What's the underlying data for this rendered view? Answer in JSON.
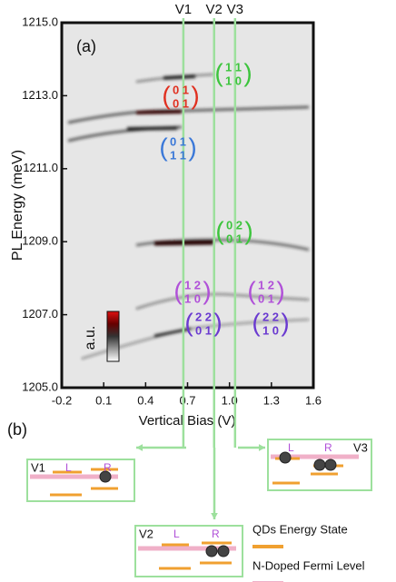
{
  "panel_a": {
    "label": "(a)",
    "xlabel": "Vertical Bias (V)",
    "ylabel": "PL Energy (meV)",
    "xlim": [
      -0.2,
      1.6
    ],
    "ylim": [
      1205,
      1215
    ],
    "xticks": [
      -0.2,
      0.1,
      0.4,
      0.7,
      {
        "value": 1.0,
        "label": "1.0"
      },
      1.3,
      1.6
    ],
    "yticks": [
      {
        "value": 1205,
        "label": "1205.0"
      },
      {
        "value": 1207,
        "label": "1207.0"
      },
      {
        "value": 1209,
        "label": "1209.0"
      },
      {
        "value": 1211,
        "label": "1211.0"
      },
      {
        "value": 1213,
        "label": "1213.0"
      },
      {
        "value": 1215,
        "label": "1215.0"
      }
    ],
    "markers": [
      {
        "name": "V1",
        "x": 0.67
      },
      {
        "name": "V2",
        "x": 0.89
      },
      {
        "name": "V3",
        "x": 1.04
      }
    ],
    "colorbar_label": "a.u.",
    "states": [
      {
        "top": "1 1",
        "bottom": "1 0",
        "color": "#3cc43c"
      },
      {
        "top": "0 1",
        "bottom": "0 1",
        "color": "#e03020"
      },
      {
        "top": "0 1",
        "bottom": "1 1",
        "color": "#3a78d8"
      },
      {
        "top": "0 2",
        "bottom": "0 1",
        "color": "#3cc43c"
      },
      {
        "top": "1 2",
        "bottom": "1 0",
        "color": "#b050d8"
      },
      {
        "top": "1 2",
        "bottom": "0 1",
        "color": "#b050d8"
      },
      {
        "top": "2 2",
        "bottom": "0 1",
        "color": "#6a3ad0"
      },
      {
        "top": "2 2",
        "bottom": "1 0",
        "color": "#6a3ad0"
      }
    ]
  },
  "panel_b": {
    "label": "(b)",
    "insets": [
      {
        "name": "V1",
        "left": "L",
        "right": "R"
      },
      {
        "name": "V3",
        "left": "L",
        "right": "R"
      },
      {
        "name": "V2",
        "left": "L",
        "right": "R"
      }
    ],
    "legend": [
      {
        "name": "QDs Energy State",
        "color": "#f0a030"
      },
      {
        "name": "N-Doped Fermi Level",
        "color": "#f0b0c8"
      }
    ]
  }
}
